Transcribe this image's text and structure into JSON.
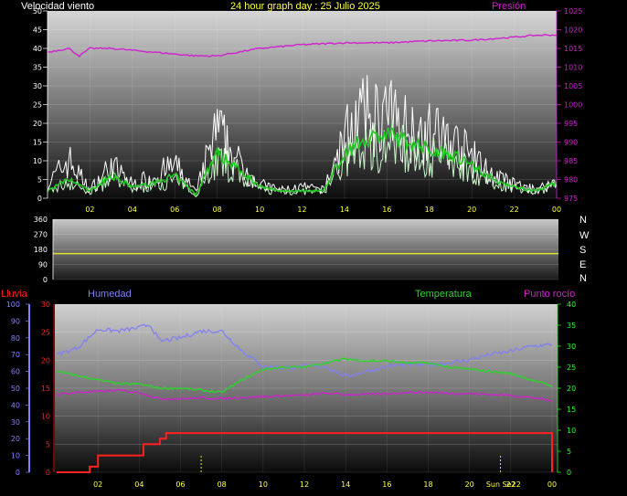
{
  "header": {
    "title": "24 hour graph day : 25 Julio 2025",
    "wind_label": "Velocidad viento",
    "pressure_label": "Presión"
  },
  "compass_letters": [
    "N",
    "W",
    "S",
    "E",
    "N"
  ],
  "lower_labels": {
    "rain": "Lluvia",
    "humidity": "Humedad",
    "temperature": "Temperatura",
    "dew_point": "Punto rocío"
  },
  "colors": {
    "wind_gust": "#ffffff",
    "wind_avg_light": "#c8f5c8",
    "wind_avg_dark": "#1ec81e",
    "pressure": "#d020d0",
    "direction": "#e0e030",
    "humidity": "#8080f0",
    "temperature": "#30d030",
    "dew_point": "#d020d0",
    "rain": "#ff2020",
    "rain_axis": "#ff2020",
    "temp_axis": "#20ff20",
    "humidity_axis": "#8080ff",
    "text_yellow": "#ffff40",
    "marker_yellow": "#e8e820"
  },
  "x_tick_labels": [
    "02",
    "04",
    "06",
    "08",
    "10",
    "12",
    "14",
    "16",
    "18",
    "20",
    "22",
    "00"
  ],
  "lower_x_extra_label": "Sun Se22",
  "chart_data": [
    {
      "type": "line",
      "panel": "wind_pressure",
      "title": "24 hour graph day : 25 Julio 2025",
      "ylim_left": [
        0,
        50
      ],
      "yticks_left": [
        "50",
        "45",
        "40",
        "35",
        "30",
        "25",
        "20",
        "15",
        "10",
        "5",
        "0"
      ],
      "ylim_right": [
        975,
        1025
      ],
      "yticks_right": [
        "1025",
        "1020",
        "1015",
        "1010",
        "1005",
        "1000",
        "995",
        "990",
        "985",
        "980",
        "975"
      ],
      "x_hours": [
        0,
        24
      ],
      "series": [
        {
          "name": "Velocidad viento",
          "axis": "left",
          "x": [
            0,
            1,
            2,
            3,
            4,
            5,
            6,
            7,
            7.5,
            8,
            9,
            10,
            11,
            12,
            13,
            14,
            14.5,
            15,
            16,
            17,
            18,
            19,
            20,
            21,
            22,
            23,
            24
          ],
          "y": [
            5,
            14,
            3,
            12,
            5,
            8,
            12,
            2,
            14,
            25,
            13,
            5,
            3,
            4,
            3,
            22,
            28,
            30,
            30,
            26,
            24,
            21,
            15,
            8,
            5,
            3,
            6
          ],
          "y_avg": [
            2,
            5,
            2,
            6,
            3,
            4,
            6,
            1,
            7,
            12,
            8,
            3,
            2,
            2,
            2,
            12,
            14,
            16,
            17,
            15,
            13,
            12,
            9,
            5,
            3,
            2,
            4
          ]
        },
        {
          "name": "Presión",
          "axis": "right",
          "x": [
            0,
            1,
            1.5,
            2,
            3,
            4,
            5,
            6,
            7,
            8,
            9,
            10,
            12,
            14,
            16,
            18,
            20,
            22,
            23,
            24
          ],
          "y": [
            1014,
            1015,
            1013,
            1015,
            1015,
            1014.5,
            1014,
            1013.5,
            1013,
            1013,
            1014,
            1015,
            1016,
            1016.5,
            1016.5,
            1017,
            1017.2,
            1018,
            1018.5,
            1018.6
          ]
        }
      ]
    },
    {
      "type": "line",
      "panel": "wind_direction",
      "ylim": [
        0,
        360
      ],
      "yticks": [
        "360",
        "270",
        "180",
        "90",
        "0"
      ],
      "series": [
        {
          "name": "",
          "x": [
            0,
            24
          ],
          "y": [
            155,
            155
          ]
        }
      ]
    },
    {
      "type": "line",
      "panel": "rain_humidity_temperature",
      "ylim_humidity": [
        0,
        100
      ],
      "yticks_humidity": [
        "100",
        "90",
        "80",
        "70",
        "60",
        "50",
        "40",
        "30",
        "20",
        "10",
        "0"
      ],
      "ylim_rain": [
        0,
        30
      ],
      "yticks_rain": [
        "30",
        "25",
        "20",
        "15",
        "10",
        "5",
        "0"
      ],
      "ylim_temp": [
        0,
        40
      ],
      "yticks_temp": [
        "40",
        "35",
        "30",
        "25",
        "20",
        "15",
        "10",
        "5",
        "0"
      ],
      "series": [
        {
          "name": "Humedad",
          "axis": "humidity",
          "x": [
            0,
            1,
            2,
            3,
            4,
            4.5,
            5,
            6,
            7,
            8,
            9,
            10,
            11,
            12,
            13,
            14,
            15,
            16,
            17,
            18,
            19,
            20,
            21,
            22,
            23,
            24
          ],
          "y": [
            70,
            74,
            85,
            84,
            86,
            88,
            78,
            80,
            84,
            84,
            72,
            63,
            62,
            63,
            63,
            57,
            60,
            63,
            64,
            64,
            65,
            67,
            70,
            72,
            75,
            76
          ]
        },
        {
          "name": "Temperatura",
          "axis": "temp",
          "x": [
            0,
            1,
            2,
            3,
            4,
            5,
            6,
            7,
            8,
            9,
            10,
            11,
            12,
            13,
            14,
            15,
            16,
            17,
            18,
            19,
            20,
            21,
            22,
            23,
            24
          ],
          "y": [
            24,
            23,
            22,
            21,
            21,
            20,
            20,
            19.5,
            19,
            22,
            24.5,
            25,
            25,
            26,
            27,
            26.5,
            26.5,
            26,
            26,
            25,
            24.5,
            24,
            23.5,
            22,
            20.5
          ]
        },
        {
          "name": "Punto rocío",
          "axis": "temp",
          "x": [
            0,
            1,
            2,
            3,
            4,
            5,
            6,
            7,
            8,
            9,
            10,
            11,
            12,
            13,
            14,
            15,
            16,
            17,
            18,
            19,
            20,
            21,
            22,
            23,
            24
          ],
          "y": [
            18.5,
            19,
            19.2,
            19.5,
            19,
            17.5,
            17.5,
            17.7,
            17.5,
            17.8,
            18,
            18.2,
            18.3,
            18.8,
            18.5,
            18.5,
            18.7,
            19,
            19,
            18.8,
            18.7,
            18.5,
            18.3,
            17.8,
            17
          ]
        },
        {
          "name": "Lluvia",
          "axis": "rain",
          "step": true,
          "x": [
            0,
            1.2,
            1.6,
            2.0,
            4.0,
            4.2,
            4.5,
            5.0,
            5.3,
            6.0,
            24
          ],
          "y": [
            0,
            0,
            1,
            3,
            3,
            5,
            5,
            6,
            7,
            7,
            7
          ]
        }
      ]
    }
  ]
}
